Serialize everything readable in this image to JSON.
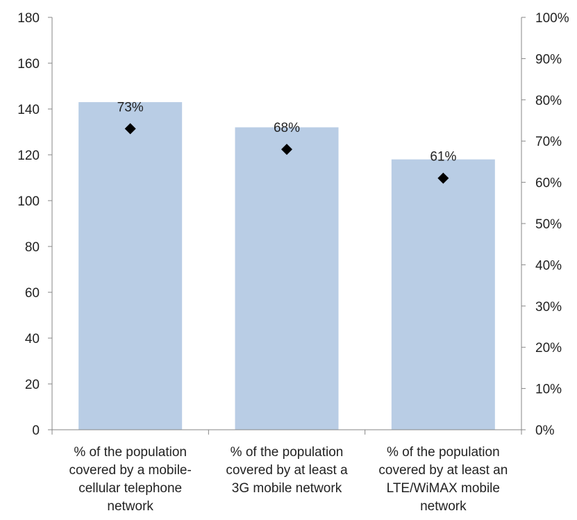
{
  "chart_data": {
    "type": "bar",
    "categories": [
      [
        "% of the population",
        "covered by a mobile-",
        "cellular telephone",
        "network"
      ],
      [
        "% of the population",
        "covered by at least a",
        "3G mobile network"
      ],
      [
        "% of the population",
        "covered by at least an",
        "LTE/WiMAX mobile",
        "network"
      ]
    ],
    "series": [
      {
        "type": "bar",
        "axis": "left",
        "values": [
          143,
          132,
          118
        ],
        "color": "#b9cde5"
      },
      {
        "type": "scatter",
        "axis": "right",
        "marker": "diamond",
        "values": [
          73,
          68,
          61
        ],
        "data_labels": [
          "73%",
          "68%",
          "61%"
        ],
        "color": "#000000"
      }
    ],
    "left_axis": {
      "ylim": [
        0,
        180
      ],
      "ticks": [
        0,
        20,
        40,
        60,
        80,
        100,
        120,
        140,
        160,
        180
      ],
      "tick_labels": [
        "0",
        "20",
        "40",
        "60",
        "80",
        "100",
        "120",
        "140",
        "160",
        "180"
      ]
    },
    "right_axis": {
      "ylim": [
        0,
        100
      ],
      "ticks": [
        0,
        10,
        20,
        30,
        40,
        50,
        60,
        70,
        80,
        90,
        100
      ],
      "tick_labels": [
        "0%",
        "10%",
        "20%",
        "30%",
        "40%",
        "50%",
        "60%",
        "70%",
        "80%",
        "90%",
        "100%"
      ]
    },
    "grid": false,
    "legend": "none",
    "axis_color": "#868686",
    "text_color": "#222222"
  }
}
